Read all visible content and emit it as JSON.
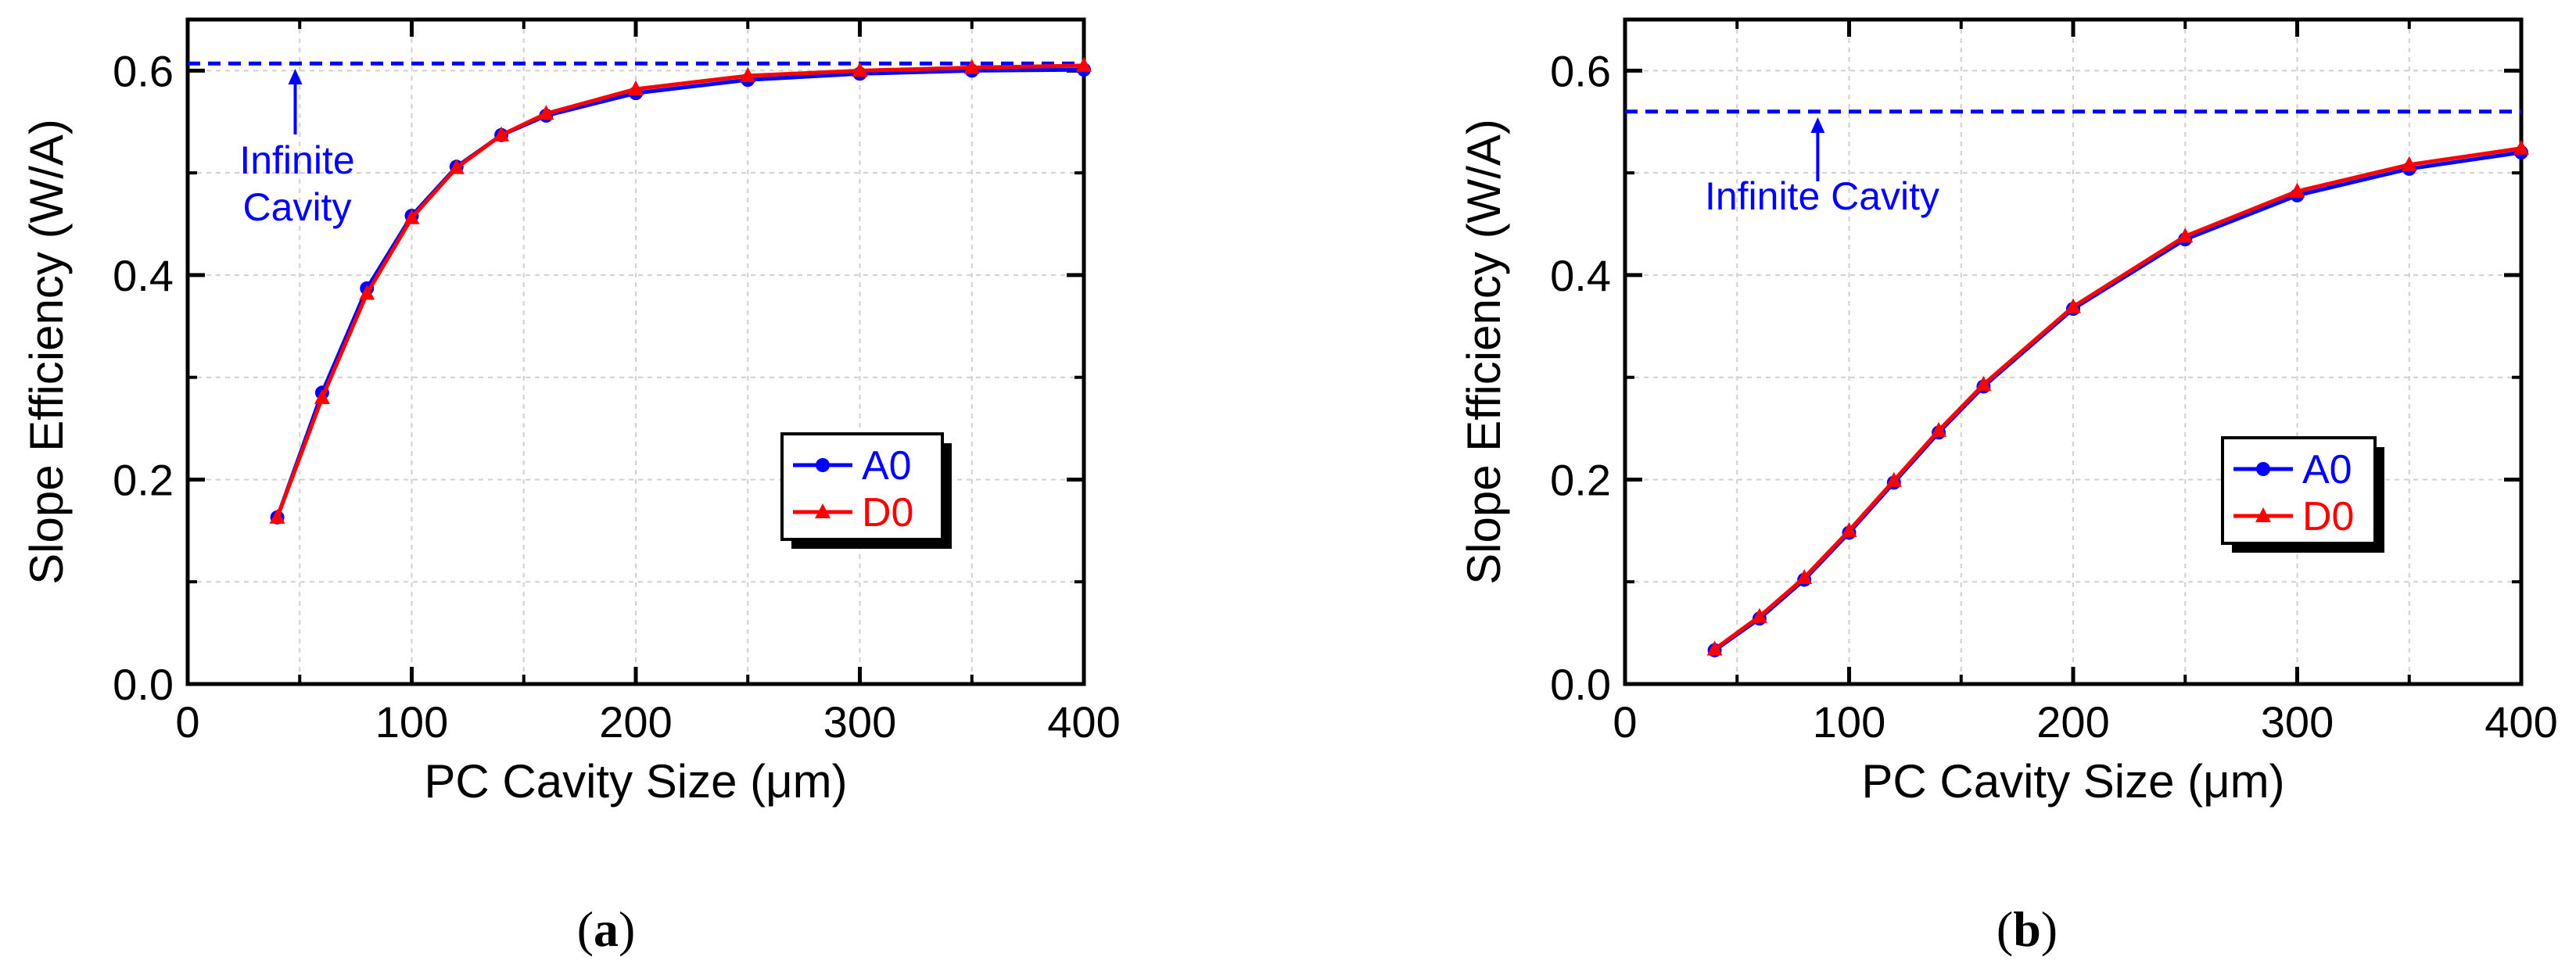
{
  "colors": {
    "series_a0": "#0000ff",
    "series_d0": "#ff0000",
    "infinite_line": "#0000ff",
    "annotation": "#0000ff",
    "axis": "#000000",
    "grid": "#d0d0d0"
  },
  "chart_data": [
    {
      "id": "a",
      "type": "line",
      "caption": "(a)",
      "caption_letter": "a",
      "xlabel": "PC Cavity Size (μm)",
      "ylabel": "Slope Efficiency (W/A)",
      "xlim": [
        0,
        400
      ],
      "ylim": [
        0,
        0.65
      ],
      "xticks": [
        0,
        100,
        200,
        300,
        400
      ],
      "xtick_labels": [
        "0",
        "100",
        "200",
        "300",
        "400"
      ],
      "yticks": [
        0.0,
        0.2,
        0.4,
        0.6
      ],
      "ytick_labels": [
        "0.0",
        "0.2",
        "0.4",
        "0.6"
      ],
      "grid": true,
      "legend_position": "right-middle",
      "infinite_cavity": {
        "y": 0.607,
        "arrow_x": 48,
        "label_lines": [
          "Infinite",
          "Cavity"
        ]
      },
      "series": [
        {
          "name": "A0",
          "marker": "circle",
          "x": [
            40,
            60,
            80,
            100,
            120,
            140,
            160,
            200,
            250,
            300,
            350,
            400
          ],
          "y": [
            0.163,
            0.285,
            0.387,
            0.458,
            0.506,
            0.537,
            0.556,
            0.578,
            0.591,
            0.597,
            0.6,
            0.601
          ]
        },
        {
          "name": "D0",
          "marker": "triangle",
          "x": [
            40,
            60,
            80,
            100,
            120,
            140,
            160,
            200,
            250,
            300,
            350,
            400
          ],
          "y": [
            0.163,
            0.28,
            0.382,
            0.456,
            0.505,
            0.537,
            0.558,
            0.582,
            0.595,
            0.6,
            0.603,
            0.605
          ]
        }
      ]
    },
    {
      "id": "b",
      "type": "line",
      "caption": "(b)",
      "caption_letter": "b",
      "xlabel": "PC Cavity Size (μm)",
      "ylabel": "Slope Efficiency (W/A)",
      "xlim": [
        0,
        400
      ],
      "ylim": [
        0,
        0.65
      ],
      "xticks": [
        0,
        100,
        200,
        300,
        400
      ],
      "xtick_labels": [
        "0",
        "100",
        "200",
        "300",
        "400"
      ],
      "yticks": [
        0.0,
        0.2,
        0.4,
        0.6
      ],
      "ytick_labels": [
        "0.0",
        "0.2",
        "0.4",
        "0.6"
      ],
      "grid": true,
      "legend_position": "right-middle",
      "infinite_cavity": {
        "y": 0.56,
        "arrow_x": 86,
        "label_lines": [
          "Infinite Cavity"
        ]
      },
      "series": [
        {
          "name": "A0",
          "marker": "circle",
          "x": [
            40,
            60,
            80,
            100,
            120,
            140,
            160,
            200,
            250,
            300,
            350,
            400
          ],
          "y": [
            0.033,
            0.064,
            0.102,
            0.148,
            0.197,
            0.246,
            0.291,
            0.367,
            0.435,
            0.478,
            0.504,
            0.52
          ]
        },
        {
          "name": "D0",
          "marker": "triangle",
          "x": [
            40,
            60,
            80,
            100,
            120,
            140,
            160,
            200,
            250,
            300,
            350,
            400
          ],
          "y": [
            0.034,
            0.066,
            0.104,
            0.15,
            0.199,
            0.248,
            0.293,
            0.369,
            0.438,
            0.482,
            0.508,
            0.524
          ]
        }
      ]
    }
  ]
}
